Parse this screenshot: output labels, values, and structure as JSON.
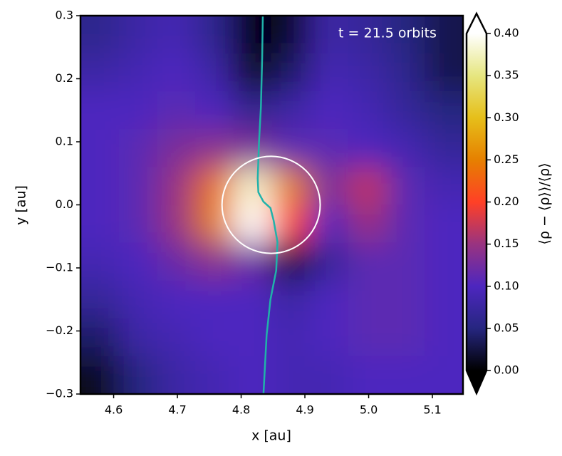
{
  "chart_data": {
    "type": "heatmap",
    "xlabel": "x [au]",
    "ylabel": "y [au]",
    "annotation": "t = 21.5 orbits",
    "xlim": [
      4.548,
      5.148
    ],
    "ylim": [
      -0.3,
      0.3
    ],
    "xticks": [
      4.6,
      4.7,
      4.8,
      4.9,
      {
        "value": 5.0,
        "label": "5.0"
      },
      5.1
    ],
    "yticks": [
      {
        "value": -0.3,
        "label": "−0.3"
      },
      {
        "value": -0.2,
        "label": "−0.2"
      },
      {
        "value": -0.1,
        "label": "−0.1"
      },
      {
        "value": 0,
        "label": "0.0"
      },
      0.1,
      0.2,
      0.3
    ],
    "colorbar": {
      "label": "⟨ρ − ⟨ρ⟩⟩/⟨ρ⟩",
      "clim": [
        0,
        0.4
      ],
      "ticks": [
        {
          "value": 0,
          "label": "0.00"
        },
        0.05,
        {
          "value": 0.1,
          "label": "0.10"
        },
        0.15,
        {
          "value": 0.2,
          "label": "0.20"
        },
        0.25,
        {
          "value": 0.3,
          "label": "0.30"
        },
        0.35,
        {
          "value": 0.4,
          "label": "0.40"
        }
      ],
      "colormap": [
        "#000000",
        "#262680",
        "#4d26bf",
        "#993380",
        "#ff4026",
        "#e68000",
        "#e6bf1a",
        "#e6e680",
        "#ffffff"
      ]
    },
    "heatmap": {
      "x": [
        4.578,
        4.638,
        4.698,
        4.758,
        4.818,
        4.878,
        4.938,
        4.998,
        5.058,
        5.118
      ],
      "y": [
        0.27,
        0.21,
        0.15,
        0.09,
        0.03,
        -0.03,
        -0.09,
        -0.15,
        -0.21,
        -0.27
      ],
      "z": [
        [
          0.06,
          0.08,
          0.09,
          0.06,
          0.0,
          0.02,
          0.08,
          0.07,
          0.05,
          0.03
        ],
        [
          0.08,
          0.09,
          0.1,
          0.08,
          0.01,
          0.04,
          0.09,
          0.08,
          0.06,
          0.03
        ],
        [
          0.1,
          0.1,
          0.11,
          0.1,
          0.06,
          0.08,
          0.1,
          0.09,
          0.07,
          0.05
        ],
        [
          0.1,
          0.11,
          0.13,
          0.14,
          0.13,
          0.11,
          0.11,
          0.1,
          0.09,
          0.07
        ],
        [
          0.1,
          0.11,
          0.15,
          0.24,
          0.38,
          0.25,
          0.13,
          0.17,
          0.11,
          0.09
        ],
        [
          0.1,
          0.11,
          0.15,
          0.25,
          0.4,
          0.2,
          0.1,
          0.15,
          0.11,
          0.1
        ],
        [
          0.09,
          0.1,
          0.12,
          0.14,
          0.12,
          0.02,
          0.07,
          0.11,
          0.11,
          0.1
        ],
        [
          0.07,
          0.09,
          0.1,
          0.1,
          0.1,
          0.08,
          0.1,
          0.11,
          0.11,
          0.1
        ],
        [
          0.04,
          0.08,
          0.09,
          0.1,
          0.1,
          0.09,
          0.1,
          0.11,
          0.11,
          0.1
        ],
        [
          0.01,
          0.05,
          0.08,
          0.09,
          0.1,
          0.09,
          0.09,
          0.1,
          0.1,
          0.1
        ]
      ]
    },
    "curve": {
      "color": "#20b2aa",
      "x": [
        4.834,
        4.833,
        4.831,
        4.828,
        4.826,
        4.827,
        4.835,
        4.846,
        4.851,
        4.857,
        4.855,
        4.846,
        4.84,
        4.835
      ],
      "y": [
        0.3,
        0.234,
        0.155,
        0.099,
        0.042,
        0.02,
        0.005,
        -0.005,
        -0.025,
        -0.059,
        -0.104,
        -0.15,
        -0.206,
        -0.3
      ]
    },
    "circle": {
      "color": "#ffffff",
      "x": 4.847,
      "y": 0.0,
      "r": 0.077
    }
  }
}
